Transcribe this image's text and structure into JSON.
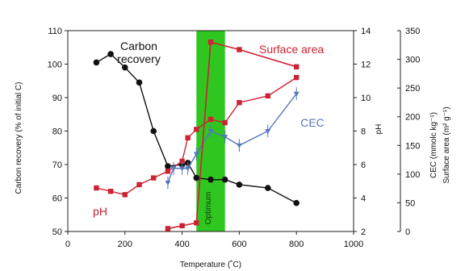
{
  "chart_data": {
    "type": "line",
    "title": "",
    "xlabel": "Temperature (˚C)",
    "ylabel_left": "Carbon recovery (% of initial C)",
    "ylabel_right_1": "pH",
    "ylabel_right_2": "CEC (mmolc kg⁻¹)",
    "ylabel_right_3": "Surface area (m² g⁻¹)",
    "xlim": [
      0,
      1000
    ],
    "ylim_left": [
      50,
      110
    ],
    "ylim_right_1": [
      2,
      14
    ],
    "ylim_right_2": [
      0,
      350
    ],
    "x_ticks": [
      0,
      200,
      400,
      600,
      800,
      1000
    ],
    "y_ticks_left": [
      50,
      60,
      70,
      80,
      90,
      100,
      110
    ],
    "y_ticks_right_1": [
      2,
      4,
      6,
      8,
      10,
      12,
      14
    ],
    "y_ticks_right_2": [
      0,
      50,
      100,
      150,
      200,
      250,
      300,
      350
    ],
    "optimum": {
      "label": "Optimum",
      "x_range": [
        450,
        550
      ]
    },
    "series": [
      {
        "name": "Carbon recovery",
        "axis": "left",
        "color": "#111111",
        "x": [
          100,
          150,
          200,
          250,
          300,
          350,
          400,
          420,
          450,
          500,
          550,
          600,
          700,
          800
        ],
        "y": [
          100.5,
          103,
          99,
          94.5,
          80,
          69.5,
          70,
          70.5,
          66,
          65.5,
          65.5,
          64,
          63,
          58.5
        ]
      },
      {
        "name": "pH",
        "axis": "right_1",
        "color": "#cc2233",
        "x": [
          100,
          150,
          200,
          250,
          300,
          350,
          400,
          420,
          450,
          500,
          550,
          600,
          700,
          800
        ],
        "y": [
          4.6,
          4.4,
          4.2,
          4.8,
          5.2,
          5.6,
          6.2,
          7.6,
          8.1,
          8.7,
          8.5,
          9.7,
          10.1,
          11.2
        ]
      },
      {
        "name": "CEC",
        "axis": "right_2",
        "color": "#5577bb",
        "x": [
          350,
          370,
          400,
          420,
          450,
          500,
          550,
          600,
          700,
          800
        ],
        "y": [
          85,
          110,
          110,
          110,
          135,
          175,
          165,
          150,
          175,
          240
        ]
      },
      {
        "name": "Surface area",
        "axis": "right_2",
        "color": "#cc2233",
        "x": [
          350,
          400,
          450,
          500,
          600,
          800
        ],
        "y": [
          5,
          10,
          15,
          330,
          317,
          287
        ]
      }
    ]
  }
}
